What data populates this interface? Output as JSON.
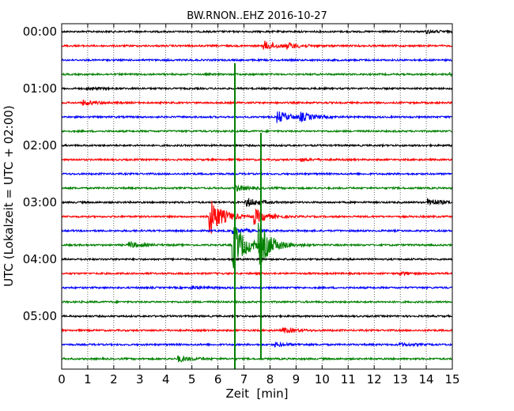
{
  "chart_data": {
    "type": "line",
    "title": "BW.RNON..EHZ 2016-10-27",
    "xlabel": "Zeit  [min]",
    "ylabel": "UTC (Lokalzeit = UTC + 02:00)",
    "xlim": [
      0,
      15
    ],
    "x_ticks": [
      "0",
      "1",
      "2",
      "3",
      "4",
      "5",
      "6",
      "7",
      "8",
      "9",
      "10",
      "11",
      "12",
      "13",
      "14",
      "15"
    ],
    "y_ticks": [
      "00:00",
      "01:00",
      "02:00",
      "03:00",
      "04:00",
      "05:00"
    ],
    "grid": "vertical dotted",
    "trace_interval_min": 15,
    "trace_colors": [
      "#000000",
      "#ff0000",
      "#0000ff",
      "#008000"
    ],
    "traces": [
      {
        "start": "00:00",
        "color": "#000000",
        "events": [
          {
            "t": 14.0,
            "amp": 0.2
          }
        ]
      },
      {
        "start": "00:15",
        "color": "#ff0000",
        "events": [
          {
            "t": 7.8,
            "amp": 0.6
          },
          {
            "t": 8.7,
            "amp": 0.35
          }
        ]
      },
      {
        "start": "00:30",
        "color": "#0000ff",
        "events": []
      },
      {
        "start": "00:45",
        "color": "#008000",
        "events": [
          {
            "t": 14.9,
            "amp": 0.2
          }
        ]
      },
      {
        "start": "01:00",
        "color": "#000000",
        "events": [
          {
            "t": 1.0,
            "amp": 0.15
          }
        ]
      },
      {
        "start": "01:15",
        "color": "#ff0000",
        "events": [
          {
            "t": 0.8,
            "amp": 0.35
          }
        ]
      },
      {
        "start": "01:30",
        "color": "#0000ff",
        "events": [
          {
            "t": 8.3,
            "amp": 0.8
          },
          {
            "t": 9.2,
            "amp": 0.5
          }
        ]
      },
      {
        "start": "01:45",
        "color": "#008000",
        "events": []
      },
      {
        "start": "02:00",
        "color": "#000000",
        "events": []
      },
      {
        "start": "02:15",
        "color": "#ff0000",
        "events": [
          {
            "t": 9.2,
            "amp": 0.15
          }
        ]
      },
      {
        "start": "02:30",
        "color": "#0000ff",
        "events": []
      },
      {
        "start": "02:45",
        "color": "#008000",
        "events": [
          {
            "t": 6.7,
            "amp": 0.4
          }
        ]
      },
      {
        "start": "03:00",
        "color": "#000000",
        "events": [
          {
            "t": 7.1,
            "amp": 0.6
          },
          {
            "t": 14.1,
            "amp": 0.5
          }
        ]
      },
      {
        "start": "03:15",
        "color": "#ff0000",
        "events": [
          {
            "t": 5.7,
            "amp": 2.6
          },
          {
            "t": 7.4,
            "amp": 1.0
          }
        ]
      },
      {
        "start": "03:30",
        "color": "#0000ff",
        "events": [
          {
            "t": 6.6,
            "amp": 0.4
          }
        ]
      },
      {
        "start": "03:45",
        "color": "#008000",
        "events": [
          {
            "t": 2.6,
            "amp": 0.4
          },
          {
            "t": 6.6,
            "amp": 3.2
          },
          {
            "t": 7.6,
            "amp": 2.6
          }
        ]
      },
      {
        "start": "04:00",
        "color": "#000000",
        "events": []
      },
      {
        "start": "04:15",
        "color": "#ff0000",
        "events": [
          {
            "t": 13.0,
            "amp": 0.2
          }
        ]
      },
      {
        "start": "04:30",
        "color": "#0000ff",
        "events": [
          {
            "t": 5.0,
            "amp": 0.2
          }
        ]
      },
      {
        "start": "04:45",
        "color": "#008000",
        "events": []
      },
      {
        "start": "05:00",
        "color": "#000000",
        "events": []
      },
      {
        "start": "05:15",
        "color": "#ff0000",
        "events": [
          {
            "t": 8.5,
            "amp": 0.35
          }
        ]
      },
      {
        "start": "05:30",
        "color": "#0000ff",
        "events": [
          {
            "t": 8.2,
            "amp": 0.25
          },
          {
            "t": 13.0,
            "amp": 0.2
          }
        ]
      },
      {
        "start": "05:45",
        "color": "#008000",
        "events": [
          {
            "t": 4.5,
            "amp": 0.4
          }
        ]
      }
    ],
    "spikes": [
      {
        "t": 6.65,
        "color": "#008000",
        "from_trace": "03:45",
        "extent": "full-height"
      },
      {
        "t": 7.65,
        "color": "#008000",
        "from_trace": "05:45",
        "extent": "upward"
      }
    ]
  }
}
